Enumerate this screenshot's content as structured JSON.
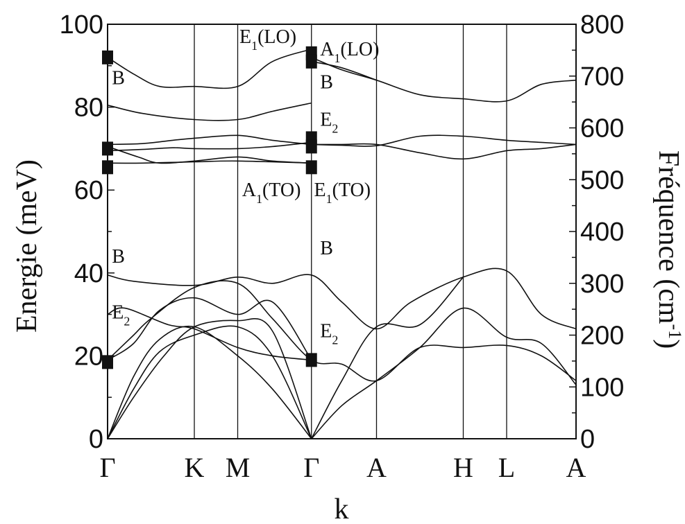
{
  "chart_data": {
    "type": "line",
    "title": "",
    "xlabel": "k",
    "ylabel_left": "Energie (meV)",
    "ylabel_right_main": "Fréquence (cm",
    "ylabel_right_sup": "-1",
    "ylabel_right_close": ")",
    "ylim_left": [
      0,
      100
    ],
    "ylim_right": [
      0,
      800
    ],
    "yticks_left": [
      "0",
      "20",
      "40",
      "60",
      "80",
      "100"
    ],
    "yticks_right": [
      "0",
      "100",
      "200",
      "300",
      "400",
      "500",
      "600",
      "700",
      "800"
    ],
    "kpoints": [
      {
        "label": "Γ",
        "pos": 0
      },
      {
        "label": "K",
        "pos": 1
      },
      {
        "label": "M",
        "pos": 1.5
      },
      {
        "label": "Γ",
        "pos": 2.35
      },
      {
        "label": "A",
        "pos": 3.1
      },
      {
        "label": "H",
        "pos": 4.1
      },
      {
        "label": "L",
        "pos": 4.6
      },
      {
        "label": "A",
        "pos": 5.4
      }
    ],
    "series": [
      {
        "points": [
          [
            0,
            92
          ],
          [
            0.3,
            88
          ],
          [
            0.6,
            85
          ],
          [
            1,
            85
          ],
          [
            1.5,
            85
          ],
          [
            1.9,
            91
          ],
          [
            2.35,
            94
          ]
        ]
      },
      {
        "points": [
          [
            0,
            80.5
          ],
          [
            0.4,
            78.5
          ],
          [
            1,
            77
          ],
          [
            1.5,
            77
          ],
          [
            1.9,
            79
          ],
          [
            2.35,
            81
          ]
        ]
      },
      {
        "points": [
          [
            0,
            71
          ],
          [
            0.4,
            71.2
          ],
          [
            0.75,
            72
          ],
          [
            1,
            72.5
          ],
          [
            1.5,
            73.2
          ],
          [
            1.9,
            72
          ],
          [
            2.35,
            71
          ]
        ]
      },
      {
        "points": [
          [
            0,
            69.5
          ],
          [
            0.4,
            69.8
          ],
          [
            0.75,
            70.2
          ],
          [
            1,
            70
          ],
          [
            1.5,
            70
          ],
          [
            1.9,
            70.5
          ],
          [
            2.35,
            71.5
          ]
        ]
      },
      {
        "points": [
          [
            0,
            70.5
          ],
          [
            0.35,
            68
          ],
          [
            0.6,
            66.5
          ],
          [
            1,
            67
          ],
          [
            1.5,
            68
          ],
          [
            1.9,
            67
          ],
          [
            2.35,
            66.5
          ]
        ]
      },
      {
        "points": [
          [
            0,
            66.5
          ],
          [
            0.4,
            66.5
          ],
          [
            1,
            66.8
          ],
          [
            1.5,
            67
          ],
          [
            2.35,
            66.5
          ]
        ]
      },
      {
        "points": [
          [
            2.35,
            92
          ],
          [
            2.7,
            89
          ],
          [
            3.1,
            86.5
          ],
          [
            3.6,
            83
          ],
          [
            4.1,
            82
          ],
          [
            4.6,
            81.5
          ],
          [
            5.0,
            85.5
          ],
          [
            5.4,
            86.5
          ]
        ]
      },
      {
        "points": [
          [
            2.35,
            91
          ],
          [
            2.7,
            89.5
          ],
          [
            3.1,
            86.5
          ]
        ]
      },
      {
        "points": [
          [
            2.35,
            71
          ],
          [
            2.7,
            70.8
          ],
          [
            3.1,
            70.7
          ],
          [
            3.6,
            73
          ],
          [
            4.1,
            73
          ],
          [
            4.6,
            72
          ],
          [
            5.0,
            71.5
          ],
          [
            5.4,
            71
          ]
        ]
      },
      {
        "points": [
          [
            2.35,
            71
          ],
          [
            2.7,
            71
          ],
          [
            3.1,
            71
          ],
          [
            3.6,
            69
          ],
          [
            4.1,
            67.5
          ],
          [
            4.6,
            69.5
          ],
          [
            5.0,
            70
          ],
          [
            5.4,
            71
          ]
        ]
      },
      {
        "points": [
          [
            0,
            39.5
          ],
          [
            0.3,
            38
          ],
          [
            1,
            37
          ],
          [
            1.5,
            39
          ],
          [
            1.9,
            37.5
          ],
          [
            2.35,
            39.5
          ],
          [
            2.7,
            33
          ],
          [
            3.1,
            26.5
          ],
          [
            3.5,
            33
          ],
          [
            4.1,
            39
          ],
          [
            4.6,
            40.5
          ],
          [
            5.0,
            30
          ],
          [
            5.4,
            26.5
          ]
        ]
      },
      {
        "points": [
          [
            0,
            19
          ],
          [
            0.3,
            25
          ],
          [
            0.5,
            29
          ],
          [
            1,
            36.5
          ],
          [
            1.5,
            37.5
          ],
          [
            1.9,
            29
          ],
          [
            2.35,
            19
          ],
          [
            2.7,
            18
          ],
          [
            3.1,
            14
          ],
          [
            3.6,
            22
          ],
          [
            4.1,
            22
          ],
          [
            4.6,
            22.5
          ],
          [
            5.0,
            20
          ],
          [
            5.4,
            14
          ]
        ]
      },
      {
        "points": [
          [
            0,
            19
          ],
          [
            0.3,
            23
          ],
          [
            0.6,
            31
          ],
          [
            1,
            34
          ],
          [
            1.5,
            30
          ],
          [
            1.9,
            33
          ],
          [
            2.35,
            19
          ]
        ]
      },
      {
        "points": [
          [
            0,
            0
          ],
          [
            0.3,
            10
          ],
          [
            0.65,
            20
          ],
          [
            1,
            27
          ],
          [
            1.5,
            28.5
          ],
          [
            1.9,
            26
          ],
          [
            2.35,
            0
          ]
        ]
      },
      {
        "points": [
          [
            0,
            0
          ],
          [
            0.3,
            12
          ],
          [
            0.6,
            21
          ],
          [
            1,
            25
          ],
          [
            1.5,
            27
          ],
          [
            1.9,
            20
          ],
          [
            2.35,
            0
          ]
        ]
      },
      {
        "points": [
          [
            0,
            0
          ],
          [
            0.3,
            15
          ],
          [
            0.6,
            24
          ],
          [
            1,
            27
          ],
          [
            1.5,
            20
          ],
          [
            1.9,
            12
          ],
          [
            2.35,
            0
          ]
        ]
      },
      {
        "points": [
          [
            0,
            30
          ],
          [
            0.2,
            31.5
          ],
          [
            0.7,
            27.5
          ],
          [
            1,
            26.5
          ],
          [
            1.5,
            22
          ],
          [
            1.9,
            20
          ],
          [
            2.35,
            19
          ]
        ]
      },
      {
        "points": [
          [
            2.35,
            0
          ],
          [
            2.7,
            8
          ],
          [
            3.1,
            14
          ],
          [
            3.6,
            22
          ],
          [
            4.1,
            31.5
          ],
          [
            4.6,
            24.5
          ],
          [
            5.0,
            23
          ],
          [
            5.4,
            13
          ]
        ]
      },
      {
        "points": [
          [
            2.35,
            0
          ],
          [
            2.7,
            14
          ],
          [
            3.1,
            27
          ],
          [
            3.6,
            27.5
          ],
          [
            4.1,
            39
          ]
        ]
      }
    ],
    "markers": [
      {
        "x": 0,
        "y": 92
      },
      {
        "x": 0,
        "y": 70
      },
      {
        "x": 0,
        "y": 65.5
      },
      {
        "x": 0,
        "y": 18.5
      },
      {
        "x": 2.35,
        "y": 93
      },
      {
        "x": 2.35,
        "y": 91
      },
      {
        "x": 2.35,
        "y": 72.5
      },
      {
        "x": 2.35,
        "y": 70.5
      },
      {
        "x": 2.35,
        "y": 65.5
      },
      {
        "x": 2.35,
        "y": 19
      }
    ],
    "annotations": [
      {
        "main": "B",
        "sub": "",
        "tail": "",
        "x": 0.05,
        "y": 85.5
      },
      {
        "main": "E",
        "sub": "1",
        "tail": "(LO)",
        "x": 1.52,
        "y": 95.5
      },
      {
        "main": "A",
        "sub": "1",
        "tail": "(LO)",
        "x": 2.45,
        "y": 92.5
      },
      {
        "main": "B",
        "sub": "",
        "tail": "",
        "x": 2.45,
        "y": 84.5
      },
      {
        "main": "E",
        "sub": "2",
        "tail": "",
        "x": 2.45,
        "y": 75.5
      },
      {
        "main": "A",
        "sub": "1",
        "tail": "(TO)",
        "x": 1.55,
        "y": 58.5
      },
      {
        "main": "E",
        "sub": "1",
        "tail": "(TO)",
        "x": 2.38,
        "y": 58.5
      },
      {
        "main": "B",
        "sub": "",
        "tail": "",
        "x": 0.05,
        "y": 42.5
      },
      {
        "main": "B",
        "sub": "",
        "tail": "",
        "x": 2.45,
        "y": 44.5
      },
      {
        "main": "E",
        "sub": "2",
        "tail": "",
        "x": 0.05,
        "y": 29
      },
      {
        "main": "E",
        "sub": "2",
        "tail": "",
        "x": 2.45,
        "y": 24.5
      }
    ]
  }
}
